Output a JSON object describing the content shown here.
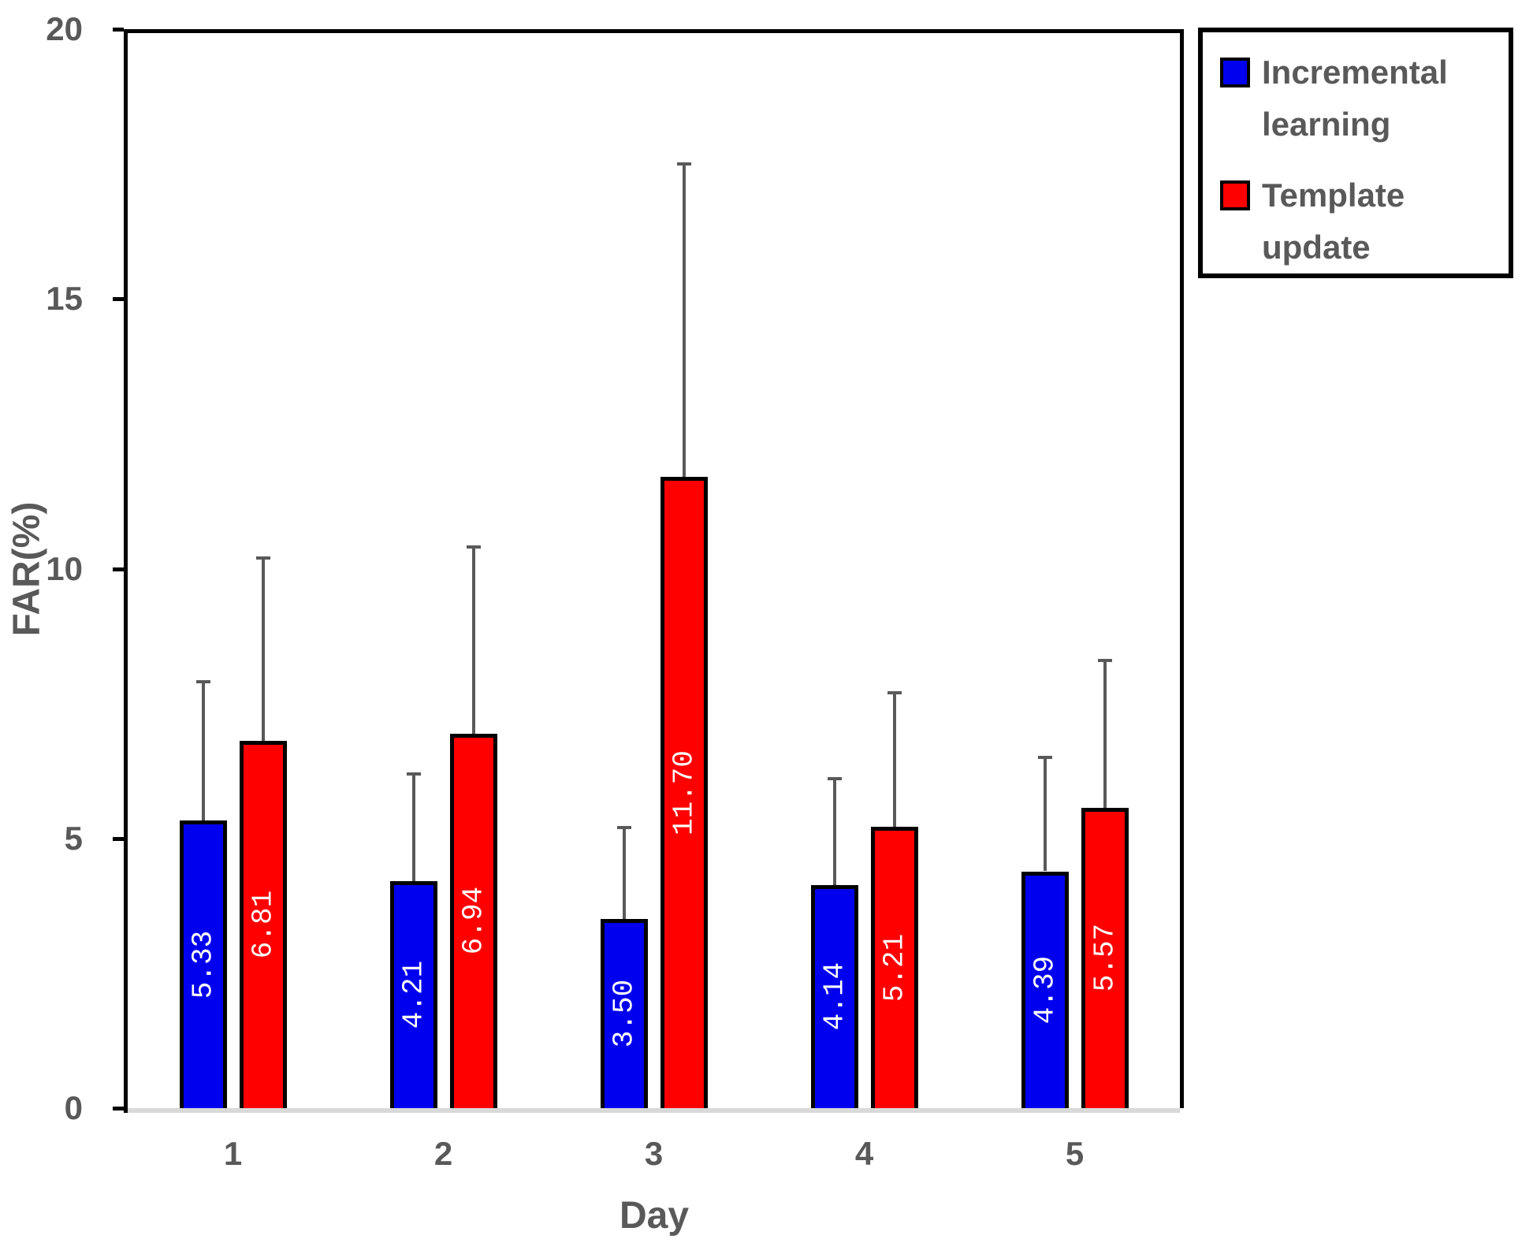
{
  "chart_data": {
    "type": "bar",
    "title": "",
    "xlabel": "Day",
    "ylabel": "FAR(%)",
    "categories": [
      "1",
      "2",
      "3",
      "4",
      "5"
    ],
    "series": [
      {
        "name": "Incremental learning",
        "color": "#0000EE",
        "values": [
          5.33,
          4.21,
          3.5,
          4.14,
          4.39
        ],
        "labels": [
          "5.33",
          "4.21",
          "3.50",
          "4.14",
          "4.39"
        ],
        "error_top": [
          7.9,
          6.2,
          5.2,
          6.1,
          6.5
        ]
      },
      {
        "name": "Template update",
        "color": "#FF0000",
        "values": [
          6.81,
          6.94,
          11.7,
          5.21,
          5.57
        ],
        "labels": [
          "6.81",
          "6.94",
          "11.70",
          "5.21",
          "5.57"
        ],
        "error_top": [
          10.2,
          10.4,
          17.5,
          7.7,
          8.3
        ]
      }
    ],
    "ylim": [
      0,
      20
    ],
    "yticks": [
      "0",
      "5",
      "10",
      "15",
      "20"
    ],
    "grid": false,
    "legend_position": "top-right",
    "bar_label_color": "#FFFFFF",
    "error_bar_color": "#595959",
    "axis_text_color": "#595959",
    "baseline_color": "#D9D9D9"
  }
}
